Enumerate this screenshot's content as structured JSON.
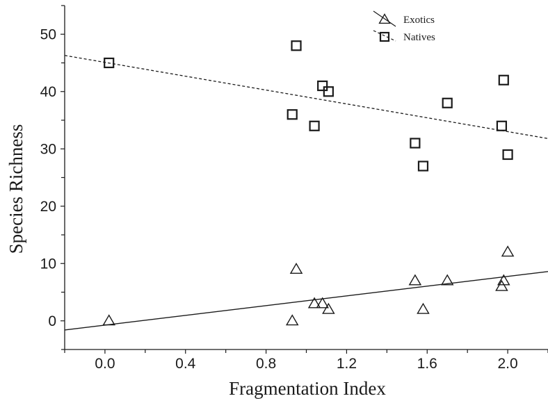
{
  "chart_data": {
    "type": "scatter",
    "xlabel": "Fragmentation Index",
    "ylabel": "Species Richness",
    "xlim": [
      -0.2,
      2.2
    ],
    "ylim": [
      -5,
      55
    ],
    "x_ticks": [
      0.0,
      0.4,
      0.8,
      1.2,
      1.6,
      2.0
    ],
    "x_tick_labels": [
      "0.0",
      "0.4",
      "0.8",
      "1.2",
      "1.6",
      "2.0"
    ],
    "y_ticks": [
      0,
      10,
      20,
      30,
      40,
      50
    ],
    "y_tick_labels": [
      "0",
      "10",
      "20",
      "30",
      "40",
      "50"
    ],
    "grid": false,
    "legend_position": "top-right",
    "series": [
      {
        "name": "Exotics",
        "marker": "triangle",
        "line_style": "solid",
        "fit_line": [
          [
            -0.2,
            -1.6
          ],
          [
            2.2,
            8.6
          ]
        ],
        "points": [
          [
            0.02,
            0
          ],
          [
            0.93,
            0
          ],
          [
            0.95,
            9
          ],
          [
            1.04,
            3
          ],
          [
            1.08,
            3
          ],
          [
            1.11,
            2
          ],
          [
            1.54,
            7
          ],
          [
            1.58,
            2
          ],
          [
            1.7,
            7
          ],
          [
            1.97,
            6
          ],
          [
            1.98,
            7
          ],
          [
            2.0,
            12
          ]
        ]
      },
      {
        "name": "Natives",
        "marker": "square",
        "line_style": "dashed",
        "fit_line": [
          [
            -0.2,
            46.3
          ],
          [
            2.2,
            31.8
          ]
        ],
        "points": [
          [
            0.02,
            45
          ],
          [
            0.95,
            48
          ],
          [
            0.93,
            36
          ],
          [
            1.04,
            34
          ],
          [
            1.08,
            41
          ],
          [
            1.11,
            40
          ],
          [
            1.54,
            31
          ],
          [
            1.58,
            27
          ],
          [
            1.7,
            38
          ],
          [
            1.97,
            34
          ],
          [
            1.98,
            42
          ],
          [
            2.0,
            29
          ]
        ]
      }
    ],
    "colors": {
      "ink": "#1a1a1a",
      "background": "#ffffff"
    }
  }
}
